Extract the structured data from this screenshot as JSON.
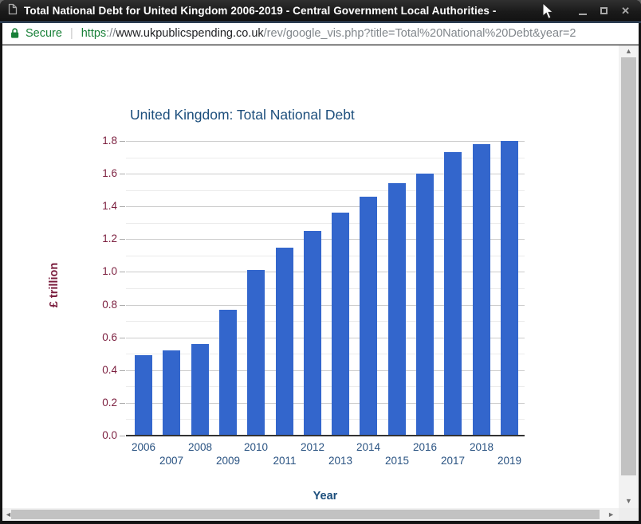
{
  "window": {
    "title": "Total National Debt for United Kingdom 2006-2019 - Central Government Local Authorities - ",
    "close_icon": "✕"
  },
  "addressbar": {
    "security_label": "Secure",
    "separator": "|",
    "url_scheme": "https",
    "url_scheme_sep": "://",
    "url_domain": "www.ukpublicspending.co.uk",
    "url_path": "/rev/google_vis.php?title=Total%20National%20Debt&year=2"
  },
  "scrollbars": {
    "up_icon": "▲",
    "down_icon": "▼",
    "left_icon": "◄",
    "right_icon": "►"
  },
  "colors": {
    "secure_green": "#188038",
    "bar_blue": "#3366cc",
    "title_navy": "#1c4e7c",
    "axis_maroon": "#7b1e3e",
    "xlabel_navy": "#2a5382",
    "major_grid": "#cccccc",
    "minor_grid": "#ebebeb"
  },
  "chart_data": {
    "type": "bar",
    "title": "United Kingdom: Total National Debt",
    "xlabel": "Year",
    "ylabel": "£ trillion",
    "categories": [
      "2006",
      "2007",
      "2008",
      "2009",
      "2010",
      "2011",
      "2012",
      "2013",
      "2014",
      "2015",
      "2016",
      "2017",
      "2018",
      "2019"
    ],
    "values": [
      0.49,
      0.52,
      0.56,
      0.77,
      1.01,
      1.15,
      1.25,
      1.36,
      1.46,
      1.54,
      1.6,
      1.73,
      1.78,
      1.8
    ],
    "ylim": [
      0,
      1.8
    ],
    "ytick_step": 0.2,
    "minor_gridline_step": 0.1,
    "y_tick_labels": [
      "0.0",
      "0.2",
      "0.4",
      "0.6",
      "0.8",
      "1.0",
      "1.2",
      "1.4",
      "1.6",
      "1.8"
    ],
    "grid": true,
    "legend": "none",
    "bar_color": "#3366cc"
  }
}
